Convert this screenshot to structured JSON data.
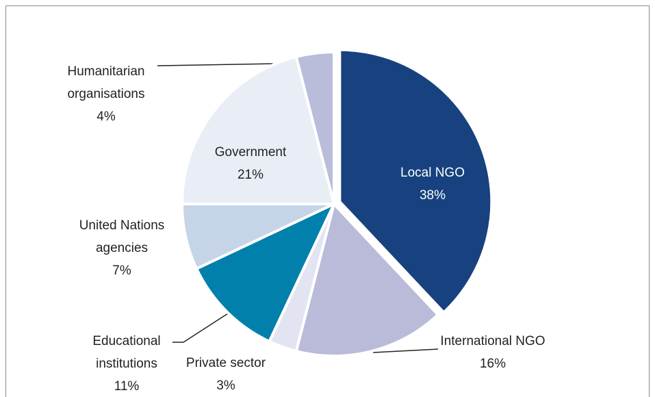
{
  "chart_data": {
    "type": "pie",
    "categories": [
      "Local NGO",
      "International NGO",
      "Private sector",
      "Educational institutions",
      "United Nations agencies",
      "Government",
      "Humanitarian organisations"
    ],
    "values": [
      38,
      16,
      3,
      11,
      7,
      21,
      4
    ],
    "value_labels": [
      "38%",
      "16%",
      "3%",
      "11%",
      "7%",
      "21%",
      "4%"
    ],
    "colors": [
      "#17427f",
      "#b9bbd9",
      "#e2e5f1",
      "#0080aa",
      "#c6d4e7",
      "#e9eef6",
      "#b9bdda"
    ]
  }
}
